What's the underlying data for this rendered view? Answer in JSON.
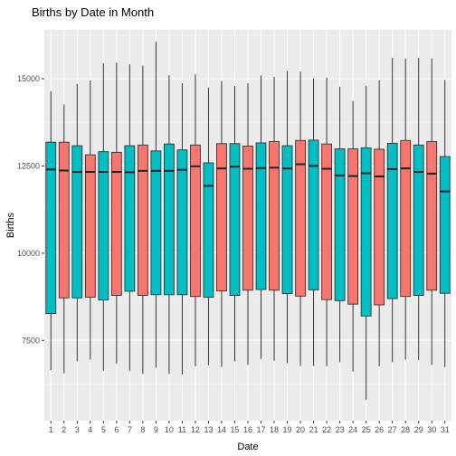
{
  "chart_data": {
    "type": "boxplot",
    "title": "Births by Date in Month",
    "xlabel": "Date",
    "ylabel": "Births",
    "categories": [
      "1",
      "2",
      "3",
      "4",
      "5",
      "6",
      "7",
      "8",
      "9",
      "10",
      "11",
      "12",
      "13",
      "14",
      "15",
      "16",
      "17",
      "18",
      "19",
      "20",
      "21",
      "22",
      "23",
      "24",
      "25",
      "26",
      "27",
      "28",
      "29",
      "30",
      "31"
    ],
    "yticks": [
      7500,
      10000,
      12500,
      15000
    ],
    "ytick_labels": [
      "7500",
      "10000",
      "12500",
      "15000"
    ],
    "ylim": [
      5200,
      16400
    ],
    "grid": true,
    "legend": "none",
    "colors": {
      "teal": "#00bfc4",
      "salmon": "#f8766d",
      "panel": "#ebebeb",
      "grid_major": "#ffffff",
      "grid_minor": "#f5f5f5",
      "outline": "#333333"
    },
    "fills": [
      "teal",
      "salmon",
      "teal",
      "salmon",
      "teal",
      "salmon",
      "teal",
      "salmon",
      "teal",
      "teal",
      "teal",
      "salmon",
      "teal",
      "salmon",
      "teal",
      "salmon",
      "teal",
      "salmon",
      "teal",
      "salmon",
      "teal",
      "salmon",
      "teal",
      "salmon",
      "teal",
      "salmon",
      "teal",
      "salmon",
      "teal",
      "salmon",
      "teal"
    ],
    "boxes": [
      {
        "min": 6650,
        "q1": 8270,
        "median": 12400,
        "q3": 13180,
        "max": 14640
      },
      {
        "min": 6560,
        "q1": 8720,
        "median": 12370,
        "q3": 13180,
        "max": 14260
      },
      {
        "min": 6900,
        "q1": 8720,
        "median": 12330,
        "q3": 13080,
        "max": 14850
      },
      {
        "min": 6950,
        "q1": 8740,
        "median": 12330,
        "q3": 12820,
        "max": 14950
      },
      {
        "min": 6630,
        "q1": 8660,
        "median": 12330,
        "q3": 12910,
        "max": 15440
      },
      {
        "min": 6830,
        "q1": 8790,
        "median": 12330,
        "q3": 12890,
        "max": 15460
      },
      {
        "min": 6630,
        "q1": 8910,
        "median": 12320,
        "q3": 13080,
        "max": 15410
      },
      {
        "min": 6540,
        "q1": 8790,
        "median": 12360,
        "q3": 13100,
        "max": 15380
      },
      {
        "min": 6720,
        "q1": 8810,
        "median": 12360,
        "q3": 12930,
        "max": 16060
      },
      {
        "min": 6540,
        "q1": 8810,
        "median": 12360,
        "q3": 13130,
        "max": 15100
      },
      {
        "min": 6520,
        "q1": 8810,
        "median": 12390,
        "q3": 12960,
        "max": 14870
      },
      {
        "min": 6760,
        "q1": 8760,
        "median": 12490,
        "q3": 13100,
        "max": 15120
      },
      {
        "min": 6790,
        "q1": 8740,
        "median": 11930,
        "q3": 12590,
        "max": 14750
      },
      {
        "min": 6740,
        "q1": 8920,
        "median": 12430,
        "q3": 13140,
        "max": 14930
      },
      {
        "min": 6900,
        "q1": 8790,
        "median": 12480,
        "q3": 13140,
        "max": 14790
      },
      {
        "min": 6800,
        "q1": 8940,
        "median": 12420,
        "q3": 13070,
        "max": 14870
      },
      {
        "min": 6970,
        "q1": 8960,
        "median": 12440,
        "q3": 13160,
        "max": 15090
      },
      {
        "min": 6920,
        "q1": 8940,
        "median": 12450,
        "q3": 13200,
        "max": 15050
      },
      {
        "min": 6850,
        "q1": 8840,
        "median": 12430,
        "q3": 13080,
        "max": 15220
      },
      {
        "min": 6770,
        "q1": 8770,
        "median": 12550,
        "q3": 13230,
        "max": 15210
      },
      {
        "min": 6770,
        "q1": 8950,
        "median": 12500,
        "q3": 13240,
        "max": 15010
      },
      {
        "min": 6760,
        "q1": 8670,
        "median": 12420,
        "q3": 13130,
        "max": 15030
      },
      {
        "min": 6880,
        "q1": 8640,
        "median": 12230,
        "q3": 12990,
        "max": 14770
      },
      {
        "min": 6610,
        "q1": 8540,
        "median": 12210,
        "q3": 12990,
        "max": 14360
      },
      {
        "min": 5800,
        "q1": 8200,
        "median": 12290,
        "q3": 13020,
        "max": 14790
      },
      {
        "min": 6760,
        "q1": 8520,
        "median": 12200,
        "q3": 12980,
        "max": 14960
      },
      {
        "min": 6880,
        "q1": 8700,
        "median": 12410,
        "q3": 13150,
        "max": 15600
      },
      {
        "min": 6950,
        "q1": 8760,
        "median": 12430,
        "q3": 13230,
        "max": 15580
      },
      {
        "min": 6940,
        "q1": 8790,
        "median": 12330,
        "q3": 13100,
        "max": 15600
      },
      {
        "min": 6800,
        "q1": 8940,
        "median": 12280,
        "q3": 13200,
        "max": 15580
      },
      {
        "min": 6740,
        "q1": 8850,
        "median": 11770,
        "q3": 12770,
        "max": 14970
      }
    ]
  }
}
